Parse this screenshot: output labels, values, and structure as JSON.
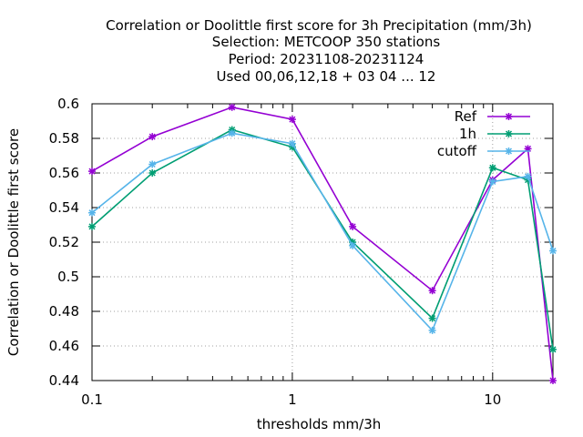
{
  "chart_data": {
    "type": "line",
    "title_lines": [
      "Correlation or Doolittle first score  for 3h Precipitation (mm/3h)",
      "Selection: METCOOP    350 stations",
      "Period: 20231108-20231124",
      "Used  00,06,12,18 + 03 04 ... 12"
    ],
    "xlabel": "thresholds mm/3h",
    "ylabel": "Correlation or Doolittle first score",
    "xscale": "log",
    "xlim": [
      0.1,
      20
    ],
    "ylim": [
      0.44,
      0.6
    ],
    "x_ticks": [
      0.1,
      1,
      10
    ],
    "x_tick_labels": [
      "0.1",
      "1",
      "10"
    ],
    "y_ticks": [
      0.44,
      0.46,
      0.48,
      0.5,
      0.52,
      0.54,
      0.56,
      0.58,
      0.6
    ],
    "y_tick_labels": [
      "0.44",
      "0.46",
      "0.48",
      "0.5",
      "0.52",
      "0.54",
      "0.56",
      "0.58",
      "0.6"
    ],
    "grid": true,
    "legend_position": "top-right",
    "x": [
      0.1,
      0.2,
      0.5,
      1,
      2,
      5,
      10,
      15,
      20
    ],
    "series": [
      {
        "name": "Ref",
        "color": "#9400d3",
        "values": [
          0.561,
          0.581,
          0.598,
          0.591,
          0.529,
          0.492,
          0.556,
          0.574,
          0.44
        ]
      },
      {
        "name": "1h",
        "color": "#009e73",
        "values": [
          0.529,
          0.56,
          0.585,
          0.575,
          0.52,
          0.476,
          0.563,
          0.556,
          0.458
        ]
      },
      {
        "name": "cutoff",
        "color": "#56b4e9",
        "values": [
          0.537,
          0.565,
          0.583,
          0.577,
          0.518,
          0.469,
          0.555,
          0.558,
          0.515
        ]
      }
    ]
  }
}
